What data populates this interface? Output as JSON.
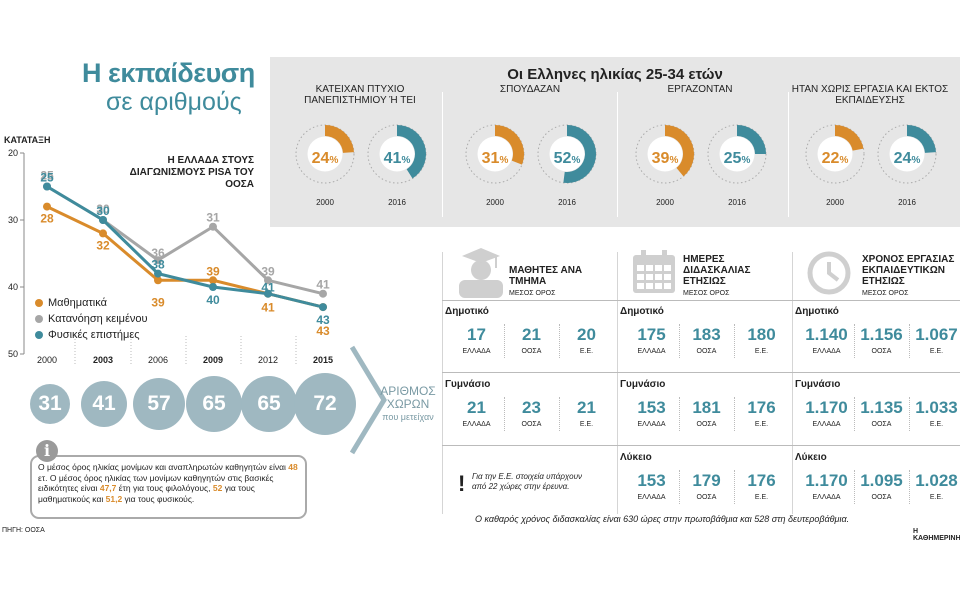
{
  "title": {
    "line1": "Η εκπαίδευση",
    "line2": "σε αριθμούς"
  },
  "colors": {
    "teal": "#3f8b9c",
    "orange": "#d98b2b",
    "gray": "#a6a6a6",
    "circle": "#9fb8c1"
  },
  "pisa": {
    "rank_label": "ΚΑΤΑΤΑΞΗ",
    "chart_title": "Η ΕΛΛΑΔΑ ΣΤΟΥΣ ΔΙΑΓΩΝΙΣΜΟΥΣ PISA ΤΟΥ ΟΟΣΑ",
    "legend": [
      "Μαθηματικά",
      "Κατανόηση κειμένου",
      "Φυσικές επιστήμες"
    ],
    "countries_label": "ΑΡΙΘΜΟΣ ΧΩΡΩΝ",
    "countries_sub": "που μετείχαν",
    "countries": [
      "31",
      "41",
      "57",
      "65",
      "65",
      "72"
    ]
  },
  "chart_data": {
    "type": "line",
    "title": "Η ΕΛΛΑΔΑ ΣΤΟΥΣ ΔΙΑΓΩΝΙΣΜΟΥΣ PISA ΤΟΥ ΟΟΣΑ",
    "ylabel": "ΚΑΤΑΤΑΞΗ",
    "x": [
      "2000",
      "2003",
      "2006",
      "2009",
      "2012",
      "2015"
    ],
    "y_inverted": true,
    "ylim": [
      20,
      50
    ],
    "yticks": [
      "20",
      "30",
      "40",
      "50"
    ],
    "grid": false,
    "legend_position": "left",
    "series": [
      {
        "name": "Μαθηματικά",
        "color": "#d98b2b",
        "values": [
          28,
          32,
          39,
          39,
          41,
          43
        ],
        "labels": [
          "28",
          "32",
          "39",
          "39",
          "41",
          "43"
        ]
      },
      {
        "name": "Κατανόηση κειμένου",
        "color": "#a6a6a6",
        "values": [
          25,
          30,
          36,
          31,
          39,
          41
        ],
        "labels": [
          "25",
          "30",
          "36",
          "31",
          "39",
          "41"
        ]
      },
      {
        "name": "Φυσικές επιστήμες",
        "color": "#3f8b9c",
        "values": [
          25,
          30,
          38,
          40,
          41,
          43
        ],
        "labels": [
          "25",
          "30",
          "38",
          "40",
          "41",
          "43"
        ]
      }
    ]
  },
  "info": {
    "icon": "i",
    "t1": "Ο μέσος όρος ηλικίας μονίμων και αναπληρωτών καθηγητών είναι ",
    "v1": "48",
    "t2": " ετ. Ο μέσος όρος ηλικίας των μονίμων καθηγητών στις βασικές ειδικότητες είναι ",
    "v2": "47,7",
    "t3": " έτη για τους φιλολόγους, ",
    "v3": "52",
    "t4": " για τους μαθηματικούς και ",
    "v4": "51,2",
    "t5": " για τους φυσικούς."
  },
  "source": "ΠΗΓΗ: ΟΟΣΑ",
  "credit": "Η ΚΑΘΗΜΕΡΙΝΗ",
  "age_panel": {
    "title": "Οι Ελληνες ηλικίας 25-34 ετών",
    "columns": [
      {
        "title": "ΚΑΤΕΙΧΑΝ ΠΤΥΧΙΟ ΠΑΝΕΠΙΣΤΗΜΙΟΥ Ή ΤΕΙ",
        "v2000": 24,
        "v2016": 41
      },
      {
        "title": "ΣΠΟΥΔΑΖΑΝ",
        "v2000": 31,
        "v2016": 52
      },
      {
        "title": "ΕΡΓΑΖΟΝΤΑΝ",
        "v2000": 39,
        "v2016": 25
      },
      {
        "title": "ΗΤΑΝ ΧΩΡΙΣ ΕΡΓΑΣΙΑ ΚΑΙ ΕΚΤΟΣ ΕΚΠΑΙΔΕΥΣΗΣ",
        "v2000": 22,
        "v2016": 24
      }
    ],
    "year1": "2000",
    "year2": "2016",
    "pct": "%"
  },
  "stats": {
    "sections": [
      {
        "title": "ΜΑΘΗΤΕΣ ΑΝΑ ΤΜΗΜΑ",
        "sub": "ΜΕΣΟΣ ΟΡΟΣ",
        "icon": "graduate-icon"
      },
      {
        "title": "ΗΜΕΡΕΣ ΔΙΔΑΣΚΑΛΙΑΣ ΕΤΗΣΙΩΣ",
        "sub": "ΜΕΣΟΣ ΟΡΟΣ",
        "icon": "calendar-icon"
      },
      {
        "title": "ΧΡΟΝΟΣ ΕΡΓΑΣΙΑΣ ΕΚΠΑΙΔΕΥΤΙΚΩΝ ΕΤΗΣΙΩΣ",
        "sub": "ΜΕΣΟΣ ΟΡΟΣ",
        "icon": "clock-icon"
      }
    ],
    "level_labels": [
      "Δημοτικό",
      "Γυμνάσιο",
      "Λύκειο"
    ],
    "cols": [
      "ΕΛΛΑΔΑ",
      "ΟΟΣΑ",
      "Ε.Ε."
    ],
    "students": {
      "dim": [
        "17",
        "21",
        "20"
      ],
      "gym": [
        "21",
        "23",
        "21"
      ]
    },
    "days": {
      "dim": [
        "175",
        "183",
        "180"
      ],
      "gym": [
        "153",
        "181",
        "176"
      ],
      "lyk": [
        "153",
        "179",
        "176"
      ]
    },
    "hours": {
      "dim": [
        "1.140",
        "1.156",
        "1.067"
      ],
      "gym": [
        "1.170",
        "1.135",
        "1.033"
      ],
      "lyk": [
        "1.170",
        "1.095",
        "1.028"
      ]
    },
    "excl_note": "Για την Ε.Ε. στοιχεία υπάρχουν από 22 χώρες στην έρευνα.",
    "bottom_note": "Ο καθαρός χρόνος διδασκαλίας είναι 630 ώρες στην πρωτοβάθμια και 528 στη δευτεροβάθμια."
  }
}
